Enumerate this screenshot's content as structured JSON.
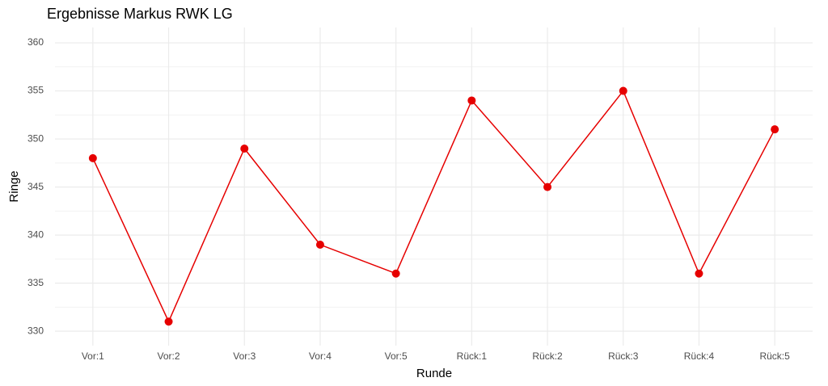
{
  "chart_data": {
    "type": "line",
    "title": "Ergebnisse Markus RWK LG",
    "x_label": "Runde",
    "y_label": "Ringe",
    "categories": [
      "Vor:1",
      "Vor:2",
      "Vor:3",
      "Vor:4",
      "Vor:5",
      "Rück:1",
      "Rück:2",
      "Rück:3",
      "Rück:4",
      "Rück:5"
    ],
    "series": [
      {
        "name": "Ringe",
        "color": "#e60000",
        "values": [
          348,
          331,
          349,
          339,
          336,
          354,
          345,
          355,
          336,
          351
        ]
      }
    ],
    "ylim": [
      328.5,
      361.6
    ],
    "yticks": [
      330,
      335,
      340,
      345,
      350,
      355,
      360
    ],
    "grid": true
  }
}
